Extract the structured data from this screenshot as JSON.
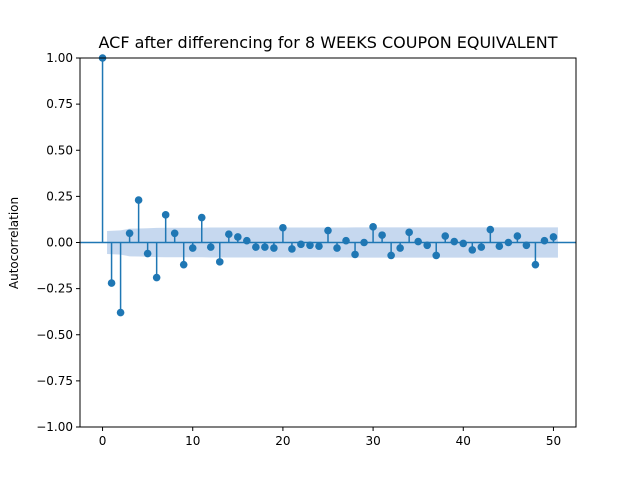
{
  "chart_data": {
    "type": "scatter",
    "title": "ACF after differencing for 8 WEEKS COUPON EQUIVALENT",
    "xlabel": "",
    "ylabel": "Autocorrelation",
    "xlim": [
      -2.5,
      52.5
    ],
    "ylim": [
      -1.0,
      1.0
    ],
    "x_ticks": [
      0,
      10,
      20,
      30,
      40,
      50
    ],
    "y_ticks": [
      -1.0,
      -0.75,
      -0.5,
      -0.25,
      0.0,
      0.25,
      0.5,
      0.75,
      1.0
    ],
    "x_tick_labels": [
      "0",
      "10",
      "20",
      "30",
      "40",
      "50"
    ],
    "y_tick_labels": [
      "−1.00",
      "−0.75",
      "−0.50",
      "−0.25",
      "0.00",
      "0.25",
      "0.50",
      "0.75",
      "1.00"
    ],
    "grid": false,
    "colors": {
      "stem": "#1f77b4",
      "marker": "#1f77b4",
      "band": "#aec7e8",
      "baseline": "#1f77b4"
    },
    "lags": [
      0,
      1,
      2,
      3,
      4,
      5,
      6,
      7,
      8,
      9,
      10,
      11,
      12,
      13,
      14,
      15,
      16,
      17,
      18,
      19,
      20,
      21,
      22,
      23,
      24,
      25,
      26,
      27,
      28,
      29,
      30,
      31,
      32,
      33,
      34,
      35,
      36,
      37,
      38,
      39,
      40,
      41,
      42,
      43,
      44,
      45,
      46,
      47,
      48,
      49,
      50
    ],
    "acf": [
      1.0,
      -0.22,
      -0.38,
      0.05,
      0.23,
      -0.06,
      -0.19,
      0.15,
      0.05,
      -0.12,
      -0.03,
      0.135,
      -0.025,
      -0.105,
      0.045,
      0.03,
      0.01,
      -0.025,
      -0.025,
      -0.03,
      0.08,
      -0.035,
      -0.01,
      -0.015,
      -0.02,
      0.065,
      -0.03,
      0.01,
      -0.065,
      0.0,
      0.085,
      0.04,
      -0.07,
      -0.03,
      0.055,
      0.005,
      -0.015,
      -0.07,
      0.035,
      0.005,
      -0.005,
      -0.04,
      -0.025,
      0.07,
      -0.02,
      0.0,
      0.035,
      -0.015,
      -0.12,
      0.01,
      0.03
    ],
    "confint_upper": [
      0.0,
      0.062,
      0.066,
      0.075,
      0.076,
      0.077,
      0.079,
      0.08,
      0.08,
      0.08,
      0.08,
      0.08,
      0.081,
      0.081,
      0.081,
      0.081,
      0.081,
      0.081,
      0.081,
      0.081,
      0.081,
      0.081,
      0.081,
      0.081,
      0.081,
      0.081,
      0.081,
      0.081,
      0.082,
      0.082,
      0.082,
      0.082,
      0.082,
      0.082,
      0.082,
      0.082,
      0.082,
      0.082,
      0.082,
      0.082,
      0.082,
      0.082,
      0.082,
      0.082,
      0.082,
      0.082,
      0.082,
      0.082,
      0.082,
      0.082,
      0.082
    ]
  }
}
